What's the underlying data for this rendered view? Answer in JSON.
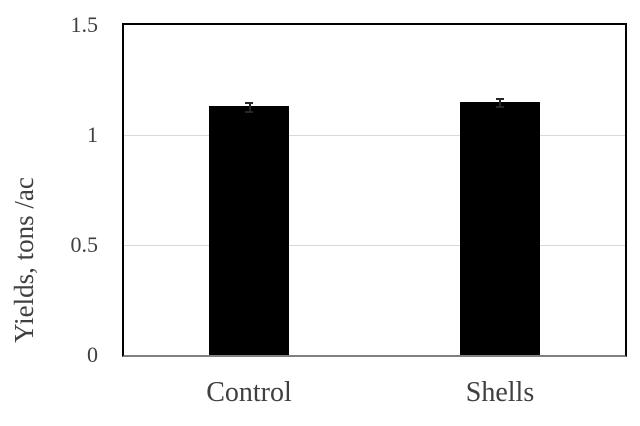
{
  "chart_data": {
    "type": "bar",
    "title": "",
    "categories": [
      "Control",
      "Shells"
    ],
    "values": [
      1.13,
      1.15
    ],
    "error_bars": [
      0.02,
      0.02
    ],
    "xlabel": "",
    "ylabel": "Yields, tons /ac",
    "ylim": [
      0,
      1.5
    ],
    "yticks": [
      0,
      0.5,
      1,
      1.5
    ],
    "ytick_labels": [
      "0",
      "0.5",
      "1",
      "1.5"
    ],
    "grid": "horizontal",
    "legend": "none",
    "colors": {
      "bar": "#000000",
      "gridline": "#d9d9d9",
      "axis_line": "#808080",
      "plot_border": "#000000",
      "text": "#404040",
      "error_bar": "#262626",
      "background": "#ffffff"
    }
  }
}
